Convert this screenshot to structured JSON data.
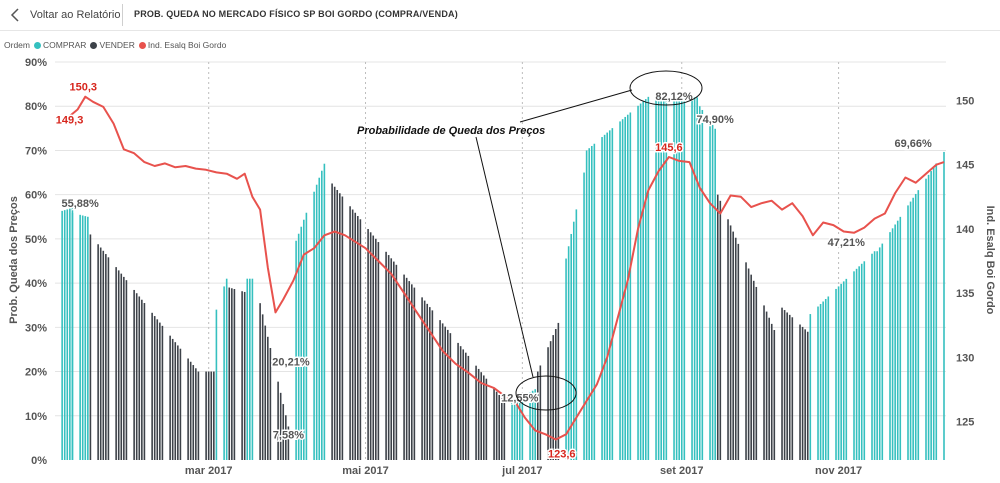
{
  "header": {
    "back_label": "Voltar ao Relatório",
    "title": "PROB. QUEDA NO MERCADO FÍSICO SP BOI GORDO (COMPRA/VENDA)"
  },
  "legend": {
    "title": "Ordem",
    "items": [
      {
        "label": "COMPRAR",
        "color": "#35c0bf"
      },
      {
        "label": "VENDER",
        "color": "#3d4249"
      },
      {
        "label": "Ind. Esalq Boi Gordo",
        "color": "#e8524d"
      }
    ]
  },
  "colors": {
    "buy": "#35c0bf",
    "sell": "#3d4249",
    "index": "#e8524d",
    "label_red": "#d7261d",
    "axis_text": "#555555",
    "grid": "#bdbdbd"
  },
  "icons": {
    "back": "chevron-left-icon"
  },
  "chart_data": {
    "type": "bar+line",
    "ylabel": "Prob. Queda dos Preços",
    "y2label": "Ind. Esalq Boi Gordo",
    "ylim": [
      0,
      90
    ],
    "y2lim": [
      122,
      153
    ],
    "y_ticks": [
      "0%",
      "10%",
      "20%",
      "30%",
      "40%",
      "50%",
      "60%",
      "70%",
      "80%",
      "90%"
    ],
    "y2_ticks": [
      125,
      130,
      135,
      140,
      145,
      150
    ],
    "x_ticks": [
      "mar 2017",
      "mai 2017",
      "jul 2017",
      "set 2017",
      "nov 2017"
    ],
    "x_tick_days": [
      59,
      120,
      181,
      243,
      304
    ],
    "day_range": [
      0,
      345
    ],
    "bar_segments": [
      {
        "start_day": 0,
        "end_day": 6,
        "from": 56,
        "to": 57,
        "order": "COMPRAR"
      },
      {
        "start_day": 6,
        "end_day": 12,
        "from": 55.88,
        "to": 55,
        "order": "COMPRAR"
      },
      {
        "start_day": 13,
        "end_day": 55,
        "from": 51,
        "to": 20,
        "order": "VENDER"
      },
      {
        "start_day": 56,
        "end_day": 61,
        "from": 20,
        "to": 20,
        "order": "VENDER"
      },
      {
        "start_day": 62,
        "end_day": 66,
        "from": 34,
        "to": 41,
        "order": "COMPRAR"
      },
      {
        "start_day": 67,
        "end_day": 73,
        "from": 39,
        "to": 38,
        "order": "VENDER"
      },
      {
        "start_day": 74,
        "end_day": 77,
        "from": 41,
        "to": 41,
        "order": "COMPRAR"
      },
      {
        "start_day": 78,
        "end_day": 90,
        "from": 38,
        "to": 7.58,
        "order": "VENDER"
      },
      {
        "start_day": 91,
        "end_day": 91,
        "from": 20.21,
        "to": 20.21,
        "order": "COMPRAR"
      },
      {
        "start_day": 92,
        "end_day": 104,
        "from": 48,
        "to": 67,
        "order": "COMPRAR"
      },
      {
        "start_day": 105,
        "end_day": 175,
        "from": 64,
        "to": 12.5,
        "order": "VENDER"
      },
      {
        "start_day": 176,
        "end_day": 186,
        "from": 12.55,
        "to": 16,
        "order": "COMPRAR"
      },
      {
        "start_day": 187,
        "end_day": 195,
        "from": 20,
        "to": 31,
        "order": "VENDER"
      },
      {
        "start_day": 196,
        "end_day": 205,
        "from": 40,
        "to": 65,
        "order": "COMPRAR"
      },
      {
        "start_day": 206,
        "end_day": 230,
        "from": 70,
        "to": 82.12,
        "order": "COMPRAR"
      },
      {
        "start_day": 231,
        "end_day": 249,
        "from": 82.12,
        "to": 82,
        "order": "COMPRAR"
      },
      {
        "start_day": 250,
        "end_day": 256,
        "from": 80,
        "to": 74.9,
        "order": "COMPRAR"
      },
      {
        "start_day": 257,
        "end_day": 280,
        "from": 60,
        "to": 28,
        "order": "VENDER"
      },
      {
        "start_day": 281,
        "end_day": 292,
        "from": 35,
        "to": 29,
        "order": "VENDER"
      },
      {
        "start_day": 293,
        "end_day": 318,
        "from": 33,
        "to": 47.21,
        "order": "COMPRAR"
      },
      {
        "start_day": 319,
        "end_day": 345,
        "from": 47.21,
        "to": 69.66,
        "order": "COMPRAR"
      }
    ],
    "index_series": [
      [
        0,
        148.2
      ],
      [
        5,
        148.8
      ],
      [
        8,
        149.3
      ],
      [
        11,
        150.3
      ],
      [
        14,
        149.9
      ],
      [
        18,
        149.5
      ],
      [
        22,
        148.2
      ],
      [
        26,
        146.2
      ],
      [
        30,
        145.9
      ],
      [
        34,
        145.2
      ],
      [
        38,
        144.9
      ],
      [
        42,
        145.1
      ],
      [
        46,
        144.8
      ],
      [
        50,
        144.9
      ],
      [
        54,
        144.7
      ],
      [
        58,
        144.6
      ],
      [
        62,
        144.4
      ],
      [
        66,
        144.3
      ],
      [
        70,
        143.9
      ],
      [
        73,
        144.3
      ],
      [
        76,
        142.5
      ],
      [
        79,
        141.5
      ],
      [
        82,
        137
      ],
      [
        85,
        133.5
      ],
      [
        88,
        134.5
      ],
      [
        92,
        136
      ],
      [
        96,
        138
      ],
      [
        100,
        138.5
      ],
      [
        104,
        139.5
      ],
      [
        108,
        139.8
      ],
      [
        112,
        139.5
      ],
      [
        116,
        139
      ],
      [
        120,
        138.5
      ],
      [
        125,
        137.5
      ],
      [
        130,
        136.5
      ],
      [
        135,
        135
      ],
      [
        140,
        133.5
      ],
      [
        145,
        132
      ],
      [
        150,
        130.5
      ],
      [
        155,
        129.5
      ],
      [
        160,
        128.8
      ],
      [
        165,
        128
      ],
      [
        170,
        127.6
      ],
      [
        174,
        127
      ],
      [
        178,
        126.6
      ],
      [
        182,
        125.3
      ],
      [
        186,
        124.3
      ],
      [
        190,
        124
      ],
      [
        194,
        123.6
      ],
      [
        198,
        124
      ],
      [
        202,
        125.3
      ],
      [
        206,
        126.6
      ],
      [
        210,
        127.9
      ],
      [
        214,
        130
      ],
      [
        218,
        133
      ],
      [
        222,
        136
      ],
      [
        226,
        140
      ],
      [
        230,
        143
      ],
      [
        234,
        144.5
      ],
      [
        238,
        145.6
      ],
      [
        242,
        145.3
      ],
      [
        246,
        145.2
      ],
      [
        250,
        143.2
      ],
      [
        254,
        142
      ],
      [
        258,
        141.2
      ],
      [
        262,
        142.6
      ],
      [
        266,
        142.5
      ],
      [
        270,
        141.7
      ],
      [
        274,
        142
      ],
      [
        278,
        142.2
      ],
      [
        282,
        141.5
      ],
      [
        286,
        142
      ],
      [
        290,
        141
      ],
      [
        294,
        139.5
      ],
      [
        298,
        140.5
      ],
      [
        302,
        140.3
      ],
      [
        306,
        139.8
      ],
      [
        310,
        139.7
      ],
      [
        314,
        140.1
      ],
      [
        318,
        140.8
      ],
      [
        322,
        141.2
      ],
      [
        326,
        142.8
      ],
      [
        330,
        144
      ],
      [
        334,
        143.6
      ],
      [
        338,
        144.3
      ],
      [
        342,
        145
      ],
      [
        345,
        145.2
      ]
    ],
    "data_labels": [
      {
        "text": "55,88%",
        "day": 9,
        "value": 55.88,
        "color": "grey"
      },
      {
        "text": "20,21%",
        "day": 91,
        "value": 20.21,
        "color": "grey"
      },
      {
        "text": "7,58%",
        "day": 90,
        "value": 7.58,
        "color": "grey"
      },
      {
        "text": "12,55%",
        "day": 180,
        "value": 12.55,
        "color": "grey"
      },
      {
        "text": "82,12%",
        "day": 240,
        "value": 82.12,
        "color": "grey"
      },
      {
        "text": "74,90%",
        "day": 256,
        "value": 74.9,
        "color": "grey"
      },
      {
        "text": "47,21%",
        "day": 307,
        "value": 47.21,
        "color": "grey"
      },
      {
        "text": "69,66%",
        "day": 333,
        "value": 69.66,
        "color": "grey"
      },
      {
        "text": "150,3",
        "day": 11,
        "value": 150.3,
        "color": "red"
      },
      {
        "text": "149,3",
        "day": 8,
        "value": 149.3,
        "color": "red"
      },
      {
        "text": "145,6",
        "day": 238,
        "value": 145.6,
        "color": "red"
      },
      {
        "text": "123,6",
        "day": 194,
        "value": 123.6,
        "color": "red"
      }
    ],
    "annotation": {
      "text": "Probabilidade de Queda dos Preços"
    }
  }
}
